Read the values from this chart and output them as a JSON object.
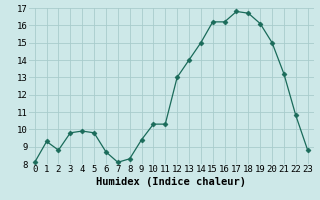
{
  "x": [
    0,
    1,
    2,
    3,
    4,
    5,
    6,
    7,
    8,
    9,
    10,
    11,
    12,
    13,
    14,
    15,
    16,
    17,
    18,
    19,
    20,
    21,
    22,
    23
  ],
  "y": [
    8.1,
    9.3,
    8.8,
    9.8,
    9.9,
    9.8,
    8.7,
    8.1,
    8.3,
    9.4,
    10.3,
    10.3,
    13.0,
    14.0,
    15.0,
    16.2,
    16.2,
    16.8,
    16.7,
    16.1,
    15.0,
    13.2,
    10.8,
    8.8
  ],
  "xlabel": "Humidex (Indice chaleur)",
  "xlim_min": -0.5,
  "xlim_max": 23.5,
  "ylim_min": 8,
  "ylim_max": 17,
  "yticks": [
    8,
    9,
    10,
    11,
    12,
    13,
    14,
    15,
    16,
    17
  ],
  "xticks": [
    0,
    1,
    2,
    3,
    4,
    5,
    6,
    7,
    8,
    9,
    10,
    11,
    12,
    13,
    14,
    15,
    16,
    17,
    18,
    19,
    20,
    21,
    22,
    23
  ],
  "line_color": "#1a6b5a",
  "marker": "D",
  "marker_size": 2.5,
  "bg_color": "#cde8e8",
  "grid_color": "#a8cccc",
  "xlabel_fontsize": 7.5,
  "tick_fontsize": 6.5
}
